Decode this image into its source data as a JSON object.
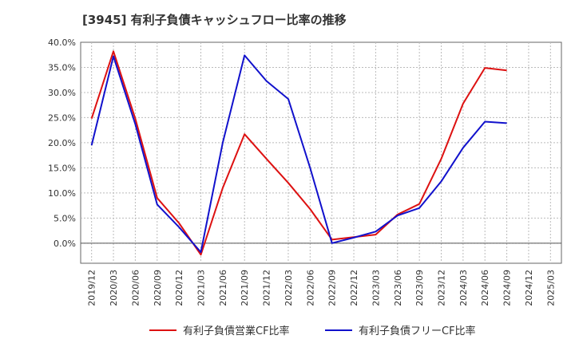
{
  "chart_data": {
    "type": "line",
    "title": "[3945]  有利子負債キャッシュフロー比率の推移",
    "x": [
      "2019/12",
      "2020/03",
      "2020/06",
      "2020/09",
      "2020/12",
      "2021/03",
      "2021/06",
      "2021/09",
      "2021/12",
      "2022/03",
      "2022/06",
      "2022/09",
      "2022/12",
      "2023/03",
      "2023/06",
      "2023/09",
      "2023/12",
      "2024/03",
      "2024/06",
      "2024/09",
      "2024/12",
      "2025/03"
    ],
    "ylim": [
      -4,
      40
    ],
    "yticks": [
      0,
      5,
      10,
      15,
      20,
      25,
      30,
      35,
      40
    ],
    "ytick_labels": [
      "0.0%",
      "5.0%",
      "10.0%",
      "15.0%",
      "20.0%",
      "25.0%",
      "30.0%",
      "35.0%",
      "40.0%"
    ],
    "grid": true,
    "legend_position": "bottom",
    "series": [
      {
        "name": "有利子負債営業CF比率",
        "color": "#dd1111",
        "values": [
          24.8,
          38.2,
          24.8,
          9.0,
          4.0,
          -2.3,
          11.0,
          21.7,
          16.8,
          12.0,
          6.8,
          0.7,
          1.2,
          1.7,
          5.7,
          7.8,
          16.8,
          27.8,
          34.9,
          34.4,
          null,
          null
        ]
      },
      {
        "name": "有利子負債フリーCF比率",
        "color": "#1111cc",
        "values": [
          19.5,
          37.2,
          23.7,
          7.7,
          3.2,
          -1.8,
          20.0,
          37.4,
          32.3,
          28.7,
          15.0,
          0.0,
          1.1,
          2.3,
          5.5,
          7.0,
          12.3,
          19.0,
          24.2,
          23.9,
          null,
          null
        ]
      }
    ]
  }
}
